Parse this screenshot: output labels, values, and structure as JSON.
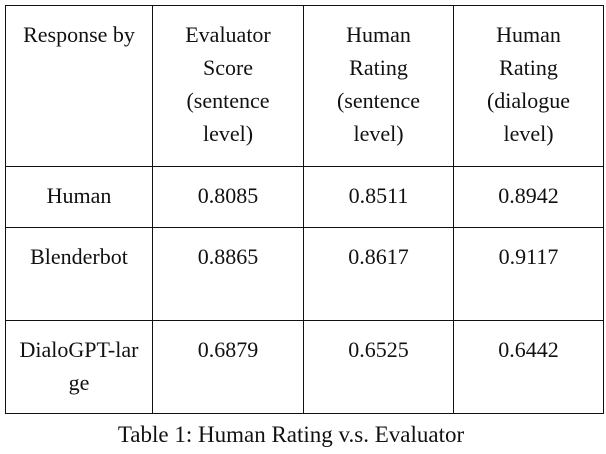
{
  "table": {
    "header": [
      "Response by",
      "Evaluator Score (sentence level)",
      "Human Rating (sentence level)",
      "Human Rating (dialogue level)"
    ],
    "rows": [
      [
        "Human",
        "0.8085",
        "0.8511",
        "0.8942"
      ],
      [
        "Blenderbot",
        "0.8865",
        "0.8617",
        "0.9117"
      ],
      [
        "DialoGPT-large",
        "0.6879",
        "0.6525",
        "0.6442"
      ]
    ],
    "caption": "Table 1: Human Rating v.s. Evaluator"
  }
}
